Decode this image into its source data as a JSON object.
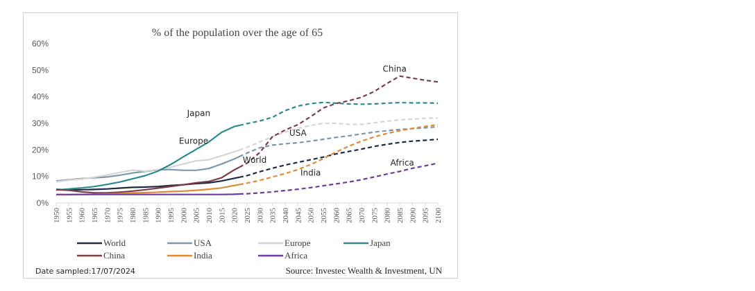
{
  "chart_data": {
    "type": "line",
    "title": "% of the population over the age of 65",
    "ylim": [
      0,
      60
    ],
    "yticks": [
      "0%",
      "10%",
      "20%",
      "30%",
      "40%",
      "50%",
      "60%"
    ],
    "ytick_values": [
      0,
      10,
      20,
      30,
      40,
      50,
      60
    ],
    "x": [
      1950,
      1955,
      1960,
      1965,
      1970,
      1975,
      1980,
      1985,
      1990,
      1995,
      2000,
      2005,
      2010,
      2015,
      2020,
      2025,
      2030,
      2035,
      2040,
      2045,
      2050,
      2055,
      2060,
      2065,
      2070,
      2075,
      2080,
      2085,
      2090,
      2095,
      2100
    ],
    "xlim": [
      1950,
      2100
    ],
    "projection_start": 2022,
    "grid": false,
    "legend_position": "bottom",
    "series": [
      {
        "name": "World",
        "color": "#1f2a44",
        "values": [
          5.1,
          5.0,
          5.0,
          5.1,
          5.3,
          5.6,
          5.9,
          6.0,
          6.2,
          6.6,
          6.9,
          7.3,
          7.6,
          8.3,
          9.3,
          10.3,
          11.8,
          13.1,
          14.3,
          15.3,
          16.3,
          17.3,
          18.5,
          19.4,
          20.3,
          21.3,
          22.1,
          22.8,
          23.3,
          23.6,
          24.0
        ],
        "label": "World"
      },
      {
        "name": "USA",
        "color": "#7f97a8",
        "values": [
          8.3,
          8.8,
          9.2,
          9.5,
          9.8,
          10.5,
          11.3,
          11.9,
          12.5,
          12.6,
          12.3,
          12.3,
          13.0,
          14.7,
          16.6,
          18.8,
          20.8,
          21.8,
          22.3,
          22.7,
          23.3,
          24.0,
          24.7,
          25.3,
          26.0,
          26.7,
          27.2,
          27.7,
          28.0,
          28.3,
          28.7
        ],
        "label": "USA"
      },
      {
        "name": "Europe",
        "color": "#d6d6d6",
        "values": [
          8.0,
          8.6,
          9.0,
          9.7,
          10.6,
          11.5,
          12.4,
          12.0,
          12.6,
          13.5,
          14.7,
          15.9,
          16.3,
          17.8,
          19.3,
          21.0,
          23.0,
          25.0,
          26.7,
          28.1,
          29.2,
          30.0,
          30.0,
          29.6,
          29.6,
          30.2,
          30.8,
          31.3,
          31.6,
          31.9,
          32.0
        ],
        "label": "Europe"
      },
      {
        "name": "Japan",
        "color": "#2b8a8e",
        "values": [
          4.9,
          5.3,
          5.7,
          6.2,
          7.0,
          7.9,
          9.1,
          10.3,
          12.0,
          14.5,
          17.4,
          20.2,
          23.0,
          26.6,
          28.8,
          29.9,
          30.9,
          32.3,
          34.8,
          36.5,
          37.4,
          37.9,
          37.6,
          37.3,
          37.2,
          37.3,
          37.6,
          37.8,
          37.7,
          37.7,
          37.6
        ],
        "label": "Japan"
      },
      {
        "name": "China",
        "color": "#7a3d47",
        "values": [
          5.0,
          4.8,
          4.2,
          3.8,
          3.8,
          4.1,
          4.5,
          5.0,
          5.6,
          6.2,
          6.9,
          7.6,
          8.1,
          9.5,
          12.5,
          15.0,
          19.0,
          25.0,
          27.5,
          29.5,
          32.5,
          35.8,
          37.5,
          38.5,
          39.8,
          42.0,
          45.0,
          47.8,
          47.0,
          46.2,
          45.6
        ],
        "label": "China"
      },
      {
        "name": "India",
        "color": "#e08a34",
        "values": [
          3.1,
          3.1,
          3.2,
          3.3,
          3.4,
          3.6,
          3.8,
          3.9,
          4.1,
          4.3,
          4.5,
          4.8,
          5.2,
          5.7,
          6.6,
          7.5,
          8.5,
          9.8,
          11.1,
          12.6,
          14.5,
          16.7,
          19.2,
          21.4,
          23.3,
          24.9,
          26.2,
          27.2,
          28.1,
          28.8,
          29.5
        ],
        "label": "India"
      },
      {
        "name": "Africa",
        "color": "#6a3d9a",
        "values": [
          3.2,
          3.2,
          3.2,
          3.2,
          3.2,
          3.2,
          3.2,
          3.2,
          3.2,
          3.2,
          3.2,
          3.2,
          3.2,
          3.2,
          3.3,
          3.5,
          3.8,
          4.2,
          4.7,
          5.2,
          5.8,
          6.5,
          7.2,
          7.9,
          8.8,
          9.8,
          10.9,
          11.9,
          13.1,
          14.0,
          15.0
        ],
        "label": "Africa"
      }
    ],
    "legend_rows": [
      [
        "World",
        "USA",
        "Europe",
        "Japan"
      ],
      [
        "China",
        "India",
        "Africa"
      ]
    ],
    "footnote": "Date sampled:17/07/2024",
    "source": "Source: Investec Wealth & Investment, UN"
  }
}
